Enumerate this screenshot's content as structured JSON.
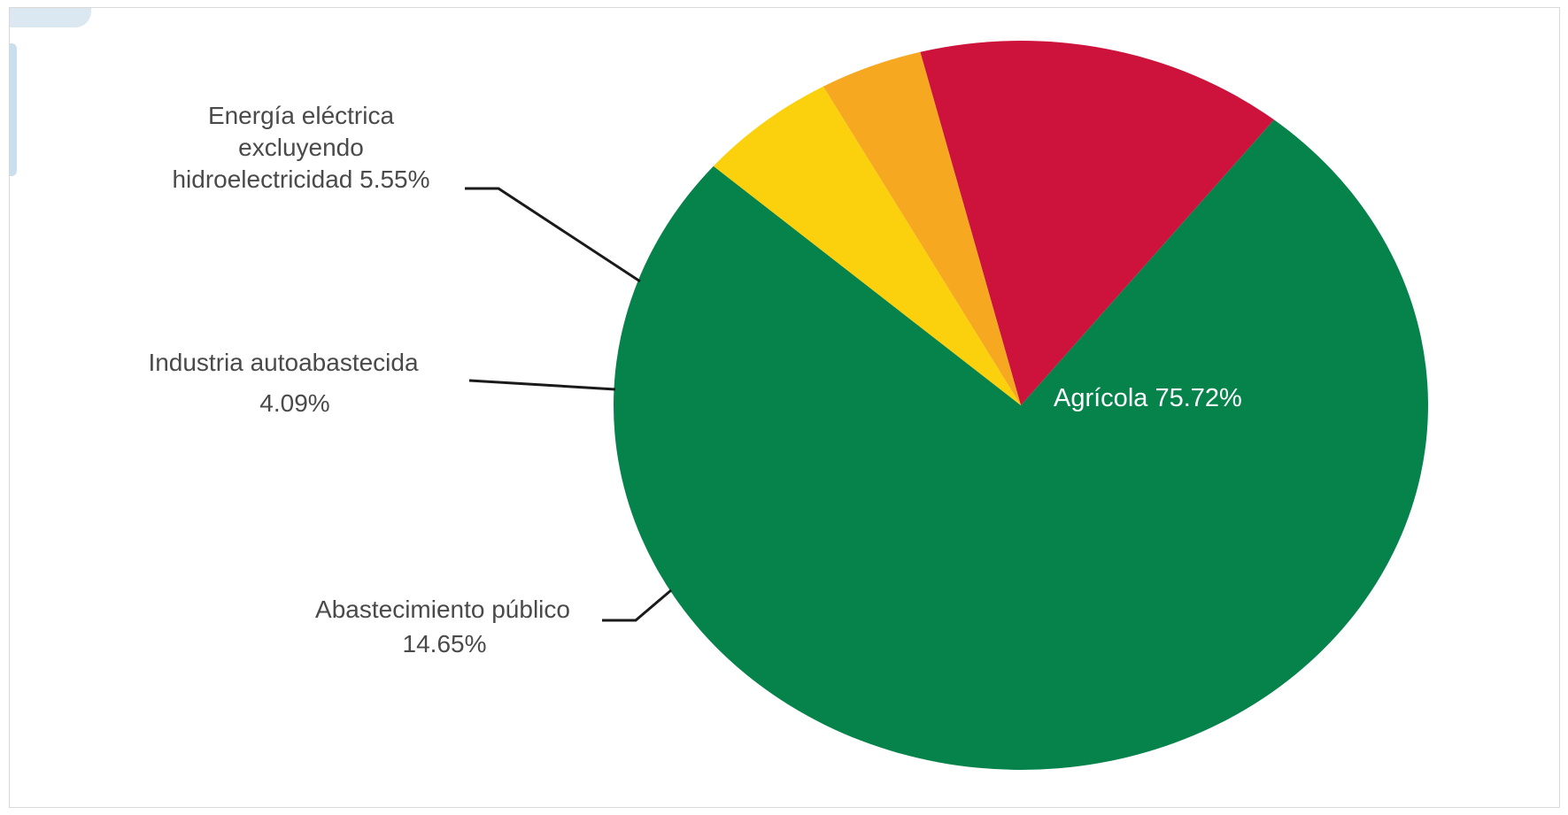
{
  "chart_data": {
    "type": "pie",
    "title": "",
    "slices": [
      {
        "name": "Agrícola",
        "value": 75.72,
        "value_label": "75.72%",
        "color": "#05834a",
        "label_lines": [
          "Agrícola 75.72%"
        ]
      },
      {
        "name": "Abastecimiento público",
        "value": 14.65,
        "value_label": "14.65%",
        "color": "#cd123c",
        "label_lines": [
          "Abastecimiento público",
          "14.65%"
        ]
      },
      {
        "name": "Industria autoabastecida",
        "value": 4.09,
        "value_label": "4.09%",
        "color": "#f6a821",
        "label_lines": [
          "Industria autoabastecida",
          "4.09%"
        ]
      },
      {
        "name": "Energía eléctrica excluyendo hidroelectricidad",
        "value": 5.55,
        "value_label": "5.55%",
        "color": "#fbd00c",
        "label_lines": [
          "Energía eléctrica",
          "excluyendo",
          "hidroelectricidad 5.55%"
        ]
      }
    ],
    "legend": "none",
    "label_placement": "callouts-left"
  }
}
